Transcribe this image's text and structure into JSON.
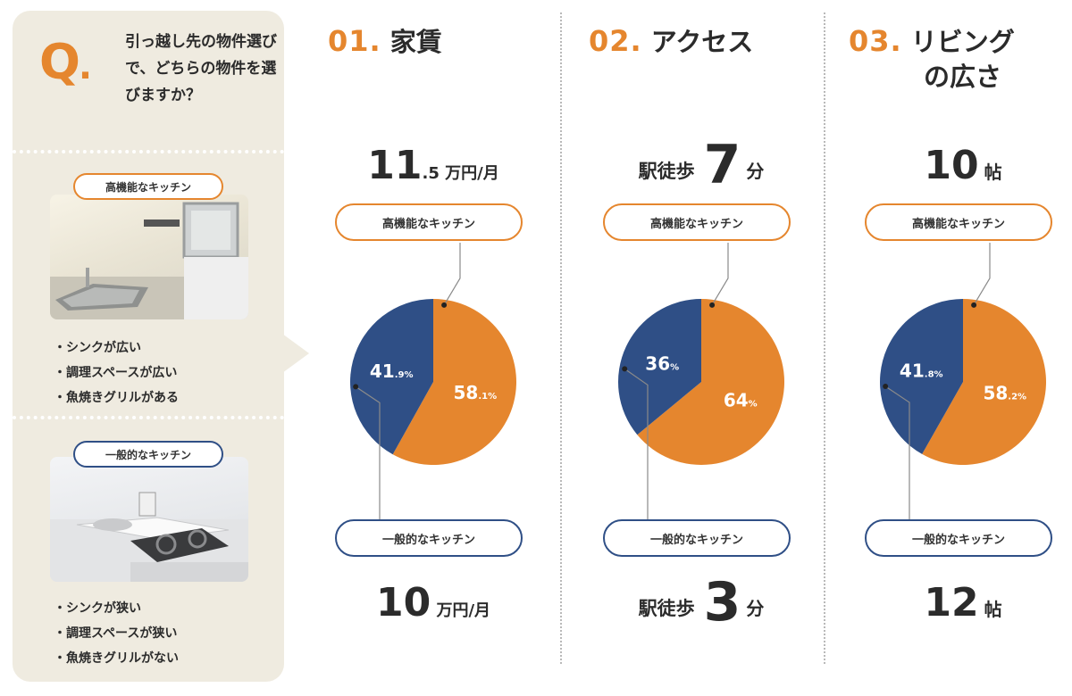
{
  "question": {
    "mark": "Q",
    "dot": ".",
    "text": "引っ越し先の物件選びで、どちらの物件を選びますか？",
    "options": [
      {
        "label": "高機能なキッチン",
        "color": "#e5862e",
        "bullets": [
          "・シンクが広い",
          "・調理スペースが広い",
          "・魚焼きグリルがある"
        ]
      },
      {
        "label": "一般的なキッチン",
        "color": "#2f4f86",
        "bullets": [
          "・シンクが狭い",
          "・調理スペースが狭い",
          "・魚焼きグリルがない"
        ]
      }
    ]
  },
  "columns": [
    {
      "number": "01.",
      "title": "家賃",
      "title_line2": "",
      "top_value": {
        "pre": "",
        "big": "11",
        "small": ".5 万円/月",
        "unit": ""
      },
      "bottom_value": {
        "pre": "",
        "big": "10",
        "small": " 万円/月",
        "unit": ""
      }
    },
    {
      "number": "02.",
      "title": "アクセス",
      "title_line2": "",
      "top_value": {
        "pre": "駅徒歩",
        "big": "7",
        "small": "",
        "unit": "分"
      },
      "bottom_value": {
        "pre": "駅徒歩",
        "big": "3",
        "small": "",
        "unit": "分"
      }
    },
    {
      "number": "03.",
      "title": "リビング",
      "title_line2": "の広さ",
      "top_value": {
        "pre": "",
        "big": "10",
        "small": "",
        "unit": "帖"
      },
      "bottom_value": {
        "pre": "",
        "big": "12",
        "small": "",
        "unit": "帖"
      }
    }
  ],
  "pill_labels": {
    "orange": "高機能なキッチン",
    "blue": "一般的なキッチン"
  },
  "colors": {
    "orange": "#e5862e",
    "blue": "#2f4f86",
    "panel": "#efebe0"
  },
  "chart_data": [
    {
      "type": "pie",
      "title": "01. 家賃",
      "series": [
        {
          "name": "高機能なキッチン",
          "value": 58.1,
          "label_main": "58",
          "label_sub": ".1%",
          "color": "#e5862e"
        },
        {
          "name": "一般的なキッチン",
          "value": 41.9,
          "label_main": "41",
          "label_sub": ".9%",
          "color": "#2f4f86"
        }
      ]
    },
    {
      "type": "pie",
      "title": "02. アクセス",
      "series": [
        {
          "name": "高機能なキッチン",
          "value": 64,
          "label_main": "64",
          "label_sub": "%",
          "color": "#e5862e"
        },
        {
          "name": "一般的なキッチン",
          "value": 36,
          "label_main": "36",
          "label_sub": "%",
          "color": "#2f4f86"
        }
      ]
    },
    {
      "type": "pie",
      "title": "03. リビングの広さ",
      "series": [
        {
          "name": "高機能なキッチン",
          "value": 58.2,
          "label_main": "58",
          "label_sub": ".2%",
          "color": "#e5862e"
        },
        {
          "name": "一般的なキッチン",
          "value": 41.8,
          "label_main": "41",
          "label_sub": ".8%",
          "color": "#2f4f86"
        }
      ]
    }
  ]
}
